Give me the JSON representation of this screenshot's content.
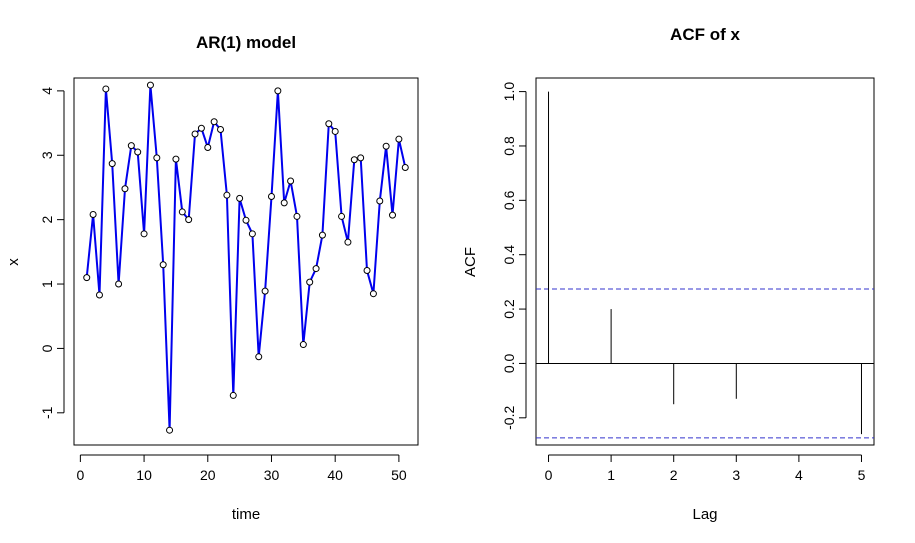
{
  "chart_data": [
    {
      "type": "line",
      "title": "AR(1) model",
      "xlabel": "time",
      "ylabel": "x",
      "xlim": [
        -1,
        53
      ],
      "ylim": [
        -1.5,
        4.2
      ],
      "xticks": [
        0,
        10,
        20,
        30,
        40,
        50
      ],
      "yticks": [
        -1,
        0,
        1,
        2,
        3,
        4
      ],
      "series": [
        {
          "color": "#0000ee",
          "markers": "open-circle",
          "x": [
            1,
            2,
            3,
            4,
            5,
            6,
            7,
            8,
            9,
            10,
            11,
            12,
            13,
            14,
            15,
            16,
            17,
            18,
            19,
            20,
            21,
            22,
            23,
            24,
            25,
            26,
            27,
            28,
            29,
            30,
            31,
            32,
            33,
            34,
            35,
            36,
            37,
            38,
            39,
            40,
            41,
            42,
            43,
            44,
            45,
            46,
            47,
            48,
            49,
            50,
            51
          ],
          "y": [
            1.1,
            2.08,
            0.83,
            4.03,
            2.87,
            1.0,
            2.48,
            3.15,
            3.05,
            1.78,
            4.09,
            2.96,
            1.3,
            -1.27,
            2.94,
            2.12,
            2.0,
            3.33,
            3.42,
            3.12,
            3.52,
            3.4,
            2.38,
            -0.73,
            2.33,
            1.99,
            1.78,
            -0.13,
            0.89,
            2.36,
            4.0,
            2.26,
            2.6,
            2.05,
            0.06,
            1.03,
            1.24,
            1.76,
            3.49,
            3.37,
            2.05,
            1.65,
            2.93,
            2.96,
            1.21,
            0.85,
            2.29,
            3.14,
            2.07,
            3.25,
            2.81
          ]
        }
      ]
    },
    {
      "type": "bar",
      "title": "ACF of x",
      "xlabel": "Lag",
      "ylabel": "ACF",
      "xlim": [
        -0.2,
        5.2
      ],
      "ylim": [
        -0.3,
        1.05
      ],
      "xticks": [
        0,
        1,
        2,
        3,
        4,
        5
      ],
      "yticks": [
        "-0.2",
        "0.0",
        "0.2",
        "0.4",
        "0.6",
        "0.8",
        "1.0"
      ],
      "lags": [
        0,
        1,
        2,
        3,
        4,
        5
      ],
      "values": [
        1.0,
        0.2,
        -0.15,
        -0.13,
        0.0,
        -0.26
      ],
      "confidence_bounds": [
        0.274,
        -0.274
      ],
      "bound_color": "#3333cc"
    }
  ]
}
